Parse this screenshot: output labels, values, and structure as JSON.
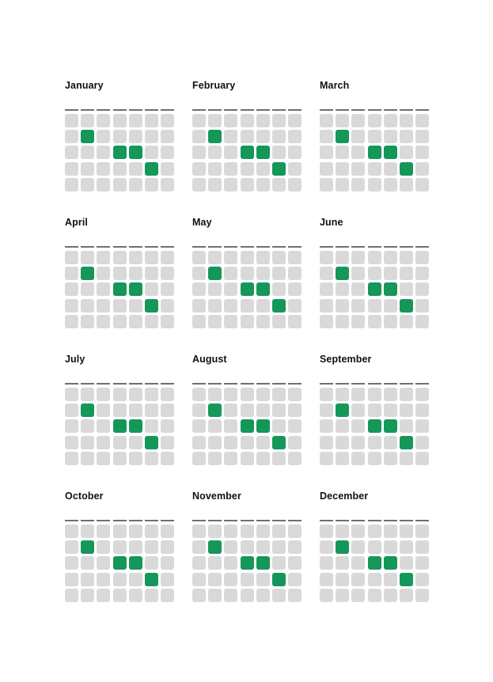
{
  "months": [
    {
      "name": "January"
    },
    {
      "name": "February"
    },
    {
      "name": "March"
    },
    {
      "name": "April"
    },
    {
      "name": "May"
    },
    {
      "name": "June"
    },
    {
      "name": "July"
    },
    {
      "name": "August"
    },
    {
      "name": "September"
    },
    {
      "name": "October"
    },
    {
      "name": "November"
    },
    {
      "name": "December"
    }
  ],
  "calendar": {
    "weeks_shown": 5,
    "days_per_week": 7,
    "active_days": [
      [
        1,
        1
      ],
      [
        2,
        3
      ],
      [
        2,
        4
      ],
      [
        3,
        5
      ]
    ]
  },
  "colors": {
    "active": "#15975a",
    "inactive": "#d9d9d9",
    "rule": "#6f6f6f",
    "title": "#111111"
  }
}
